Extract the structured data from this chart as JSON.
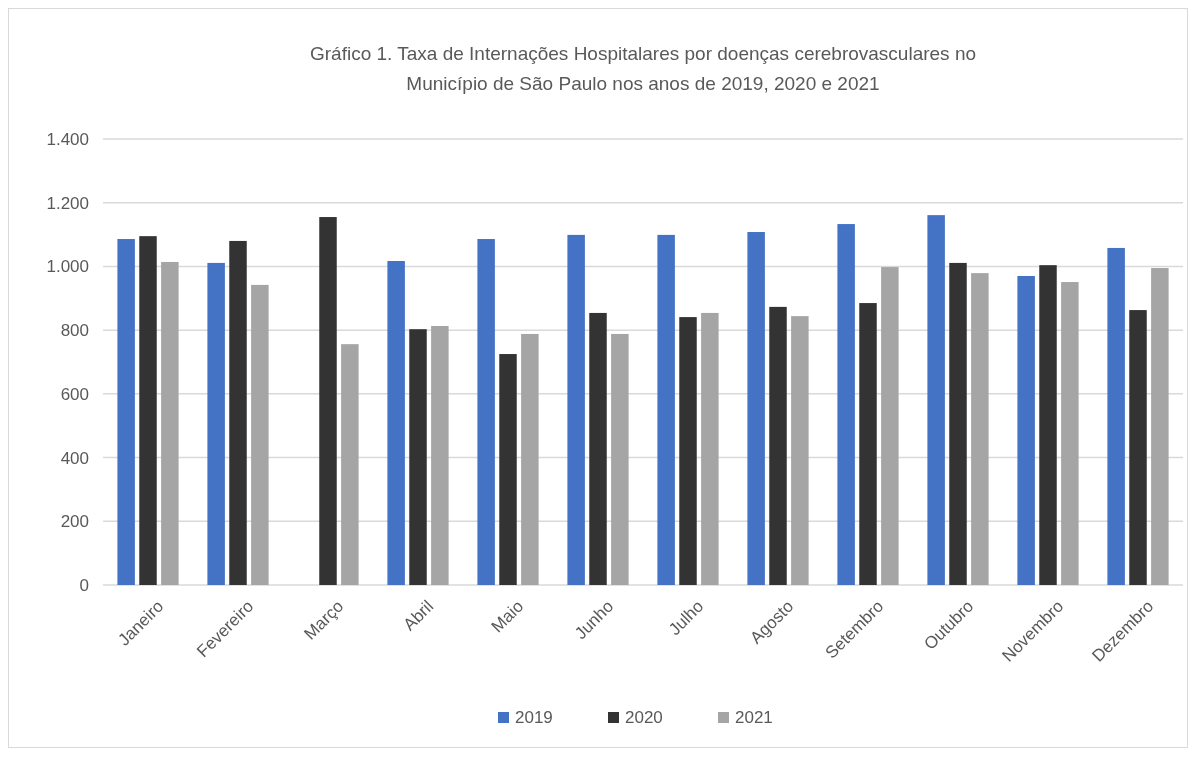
{
  "chart_data": {
    "type": "bar",
    "title": "Gráfico 1. Taxa de Internações Hospitalares por doenças cerebrovasculares no Município de São Paulo nos anos de 2019, 2020 e 2021",
    "categories": [
      "Janeiro",
      "Fevereiro",
      "Março",
      "Abril",
      "Maio",
      "Junho",
      "Julho",
      "Agosto",
      "Setembro",
      "Outubro",
      "Novembro",
      "Dezembro"
    ],
    "series": [
      {
        "name": "2019",
        "color": "#4472c4",
        "values": [
          1086,
          1011,
          null,
          1017,
          1086,
          1099,
          1099,
          1108,
          1133,
          1161,
          970,
          1058
        ]
      },
      {
        "name": "2020",
        "color": "#333333",
        "values": [
          1095,
          1080,
          1155,
          803,
          725,
          854,
          841,
          873,
          885,
          1011,
          1004,
          863
        ]
      },
      {
        "name": "2021",
        "color": "#a5a5a5",
        "values": [
          1014,
          942,
          756,
          813,
          788,
          788,
          854,
          844,
          998,
          979,
          951,
          995
        ]
      }
    ],
    "ylim": [
      0,
      1400
    ],
    "yticks": [
      0,
      200,
      400,
      600,
      800,
      {
        "value": 1000,
        "label": "1.000"
      },
      {
        "value": 1200,
        "label": "1.200"
      },
      {
        "value": 1400,
        "label": "1.400"
      }
    ],
    "grid": "y",
    "legend": "bottom"
  }
}
